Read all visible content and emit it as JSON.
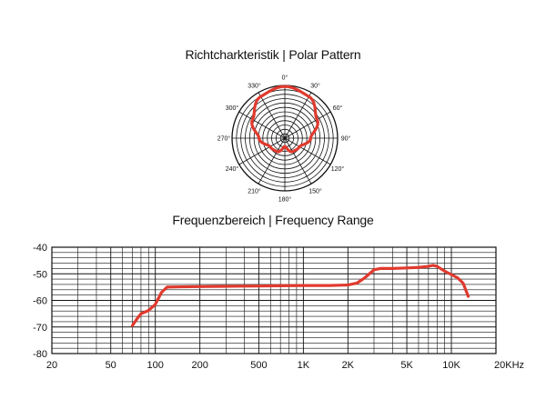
{
  "polar_title": "Richtcharkteristik | Polar Pattern",
  "freq_title": "Frequenzbereich | Frequency Range",
  "colors": {
    "curve": "#e03a2e",
    "grid": "#111111"
  },
  "chart_data": [
    {
      "type": "polar",
      "angle_labels": [
        "0°",
        "30°",
        "60°",
        "90°",
        "120°",
        "150°",
        "180°",
        "210°",
        "240°",
        "270°",
        "300°",
        "330°"
      ],
      "angle_degrees": [
        0,
        30,
        60,
        90,
        120,
        150,
        180,
        210,
        240,
        270,
        300,
        330
      ],
      "ring_count": 12,
      "pattern": "supercardioid",
      "pattern_points": [
        {
          "angle": 0,
          "r": 1.0
        },
        {
          "angle": 30,
          "r": 0.93
        },
        {
          "angle": 60,
          "r": 0.72
        },
        {
          "angle": 90,
          "r": 0.5
        },
        {
          "angle": 120,
          "r": 0.33
        },
        {
          "angle": 150,
          "r": 0.3
        },
        {
          "angle": 180,
          "r": 0.16
        },
        {
          "angle": 210,
          "r": 0.3
        },
        {
          "angle": 240,
          "r": 0.33
        },
        {
          "angle": 270,
          "r": 0.5
        },
        {
          "angle": 300,
          "r": 0.72
        },
        {
          "angle": 330,
          "r": 0.93
        }
      ]
    },
    {
      "type": "line",
      "x_scale": "log",
      "xlim": [
        20,
        20000
      ],
      "ylim": [
        -80,
        -40
      ],
      "x_tick_labels": [
        "20",
        "50",
        "100",
        "200",
        "500",
        "1K",
        "2K",
        "5K",
        "10K",
        "20KHz"
      ],
      "x_tick_values": [
        20,
        50,
        100,
        200,
        500,
        1000,
        2000,
        5000,
        10000,
        20000
      ],
      "y_tick_labels": [
        "-40",
        "-50",
        "-60",
        "-70",
        "-80"
      ],
      "y_tick_values": [
        -40,
        -50,
        -60,
        -70,
        -80
      ],
      "grid": true,
      "series": [
        {
          "x": [
            70,
            75,
            80,
            90,
            100,
            110,
            120,
            150,
            200,
            300,
            500,
            700,
            1000,
            1500,
            2000,
            2300,
            2600,
            3000,
            3300,
            4000,
            5000,
            6000,
            7000,
            7500,
            8000,
            9000,
            10000,
            11000,
            12000,
            13000
          ],
          "y": [
            -69.5,
            -67,
            -65,
            -63.8,
            -61.5,
            -57,
            -55,
            -54.9,
            -54.8,
            -54.7,
            -54.6,
            -54.5,
            -54.4,
            -54.4,
            -54.2,
            -53.5,
            -51.5,
            -48.5,
            -48,
            -48,
            -47.8,
            -47.6,
            -47.2,
            -46.8,
            -47.2,
            -49,
            -50.3,
            -51.5,
            -53.5,
            -58.5
          ]
        }
      ]
    }
  ]
}
